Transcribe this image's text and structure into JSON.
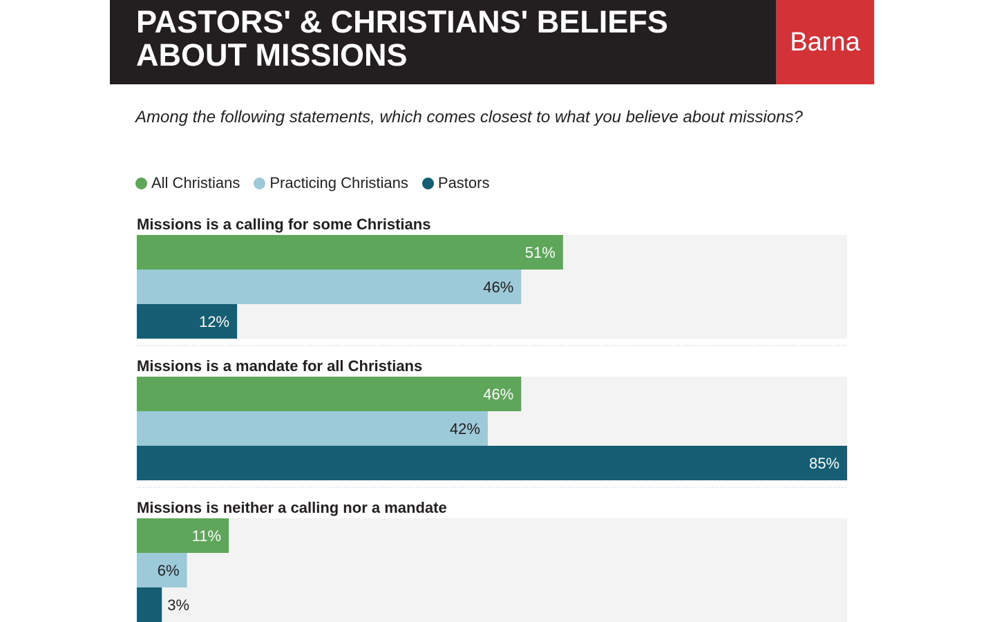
{
  "header": {
    "title_line1": "PASTORS' & CHRISTIANS' BELIEFS",
    "title_line2": "ABOUT MISSIONS",
    "brand": "Barna"
  },
  "question": "Among the following statements, which comes closest to what you believe about missions?",
  "colors": {
    "header_bg": "#231f20",
    "brand_bg": "#d33237",
    "track_bg": "#f3f3f3"
  },
  "chart_data": {
    "type": "bar",
    "orientation": "horizontal",
    "title": "PASTORS' & CHRISTIANS' BELIEFS ABOUT MISSIONS",
    "subtitle": "Among the following statements, which comes closest to what you believe about missions?",
    "categories": [
      "Missions is a calling for some Christians",
      "Missions is a mandate for all Christians",
      "Missions is neither a calling nor a mandate"
    ],
    "series": [
      {
        "name": "All Christians",
        "color": "#5ea65a",
        "label_color": "#ffffff",
        "values": [
          51,
          46,
          11
        ]
      },
      {
        "name": "Practicing Christians",
        "color": "#9ccad8",
        "label_color": "#231f20",
        "values": [
          46,
          42,
          6
        ]
      },
      {
        "name": "Pastors",
        "color": "#155e73",
        "label_color": "#ffffff",
        "values": [
          12,
          85,
          3
        ]
      }
    ],
    "value_suffix": "%",
    "xlim": [
      0,
      85
    ],
    "legend_position": "top-left",
    "grid": false
  }
}
